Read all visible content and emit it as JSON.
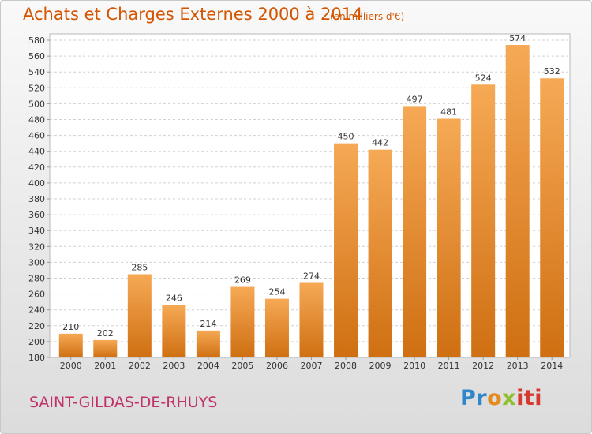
{
  "header": {
    "title": "Achats et Charges Externes 2000 à 2014",
    "subtitle": "(en milliers d'€)"
  },
  "footer": {
    "place": "SAINT-GILDAS-DE-RHUYS",
    "logo": "Proxiti",
    "logo_parts": [
      "Pr",
      "o",
      "x",
      "iti"
    ]
  },
  "colors": {
    "bar_top": "#f6a955",
    "bar_bottom": "#cf6f12",
    "title": "#d45500",
    "place": "#c0306a"
  },
  "chart_data": {
    "type": "bar",
    "title": "Achats et Charges Externes 2000 à 2014",
    "subtitle": "(en milliers d'€)",
    "categories": [
      "2000",
      "2001",
      "2002",
      "2003",
      "2004",
      "2005",
      "2006",
      "2007",
      "2008",
      "2009",
      "2010",
      "2011",
      "2012",
      "2013",
      "2014"
    ],
    "values": [
      210,
      202,
      285,
      246,
      214,
      269,
      254,
      274,
      450,
      442,
      497,
      481,
      524,
      574,
      532
    ],
    "ylim": [
      180,
      580
    ],
    "ytick_step": 20,
    "grid": true,
    "data_labels": true
  }
}
